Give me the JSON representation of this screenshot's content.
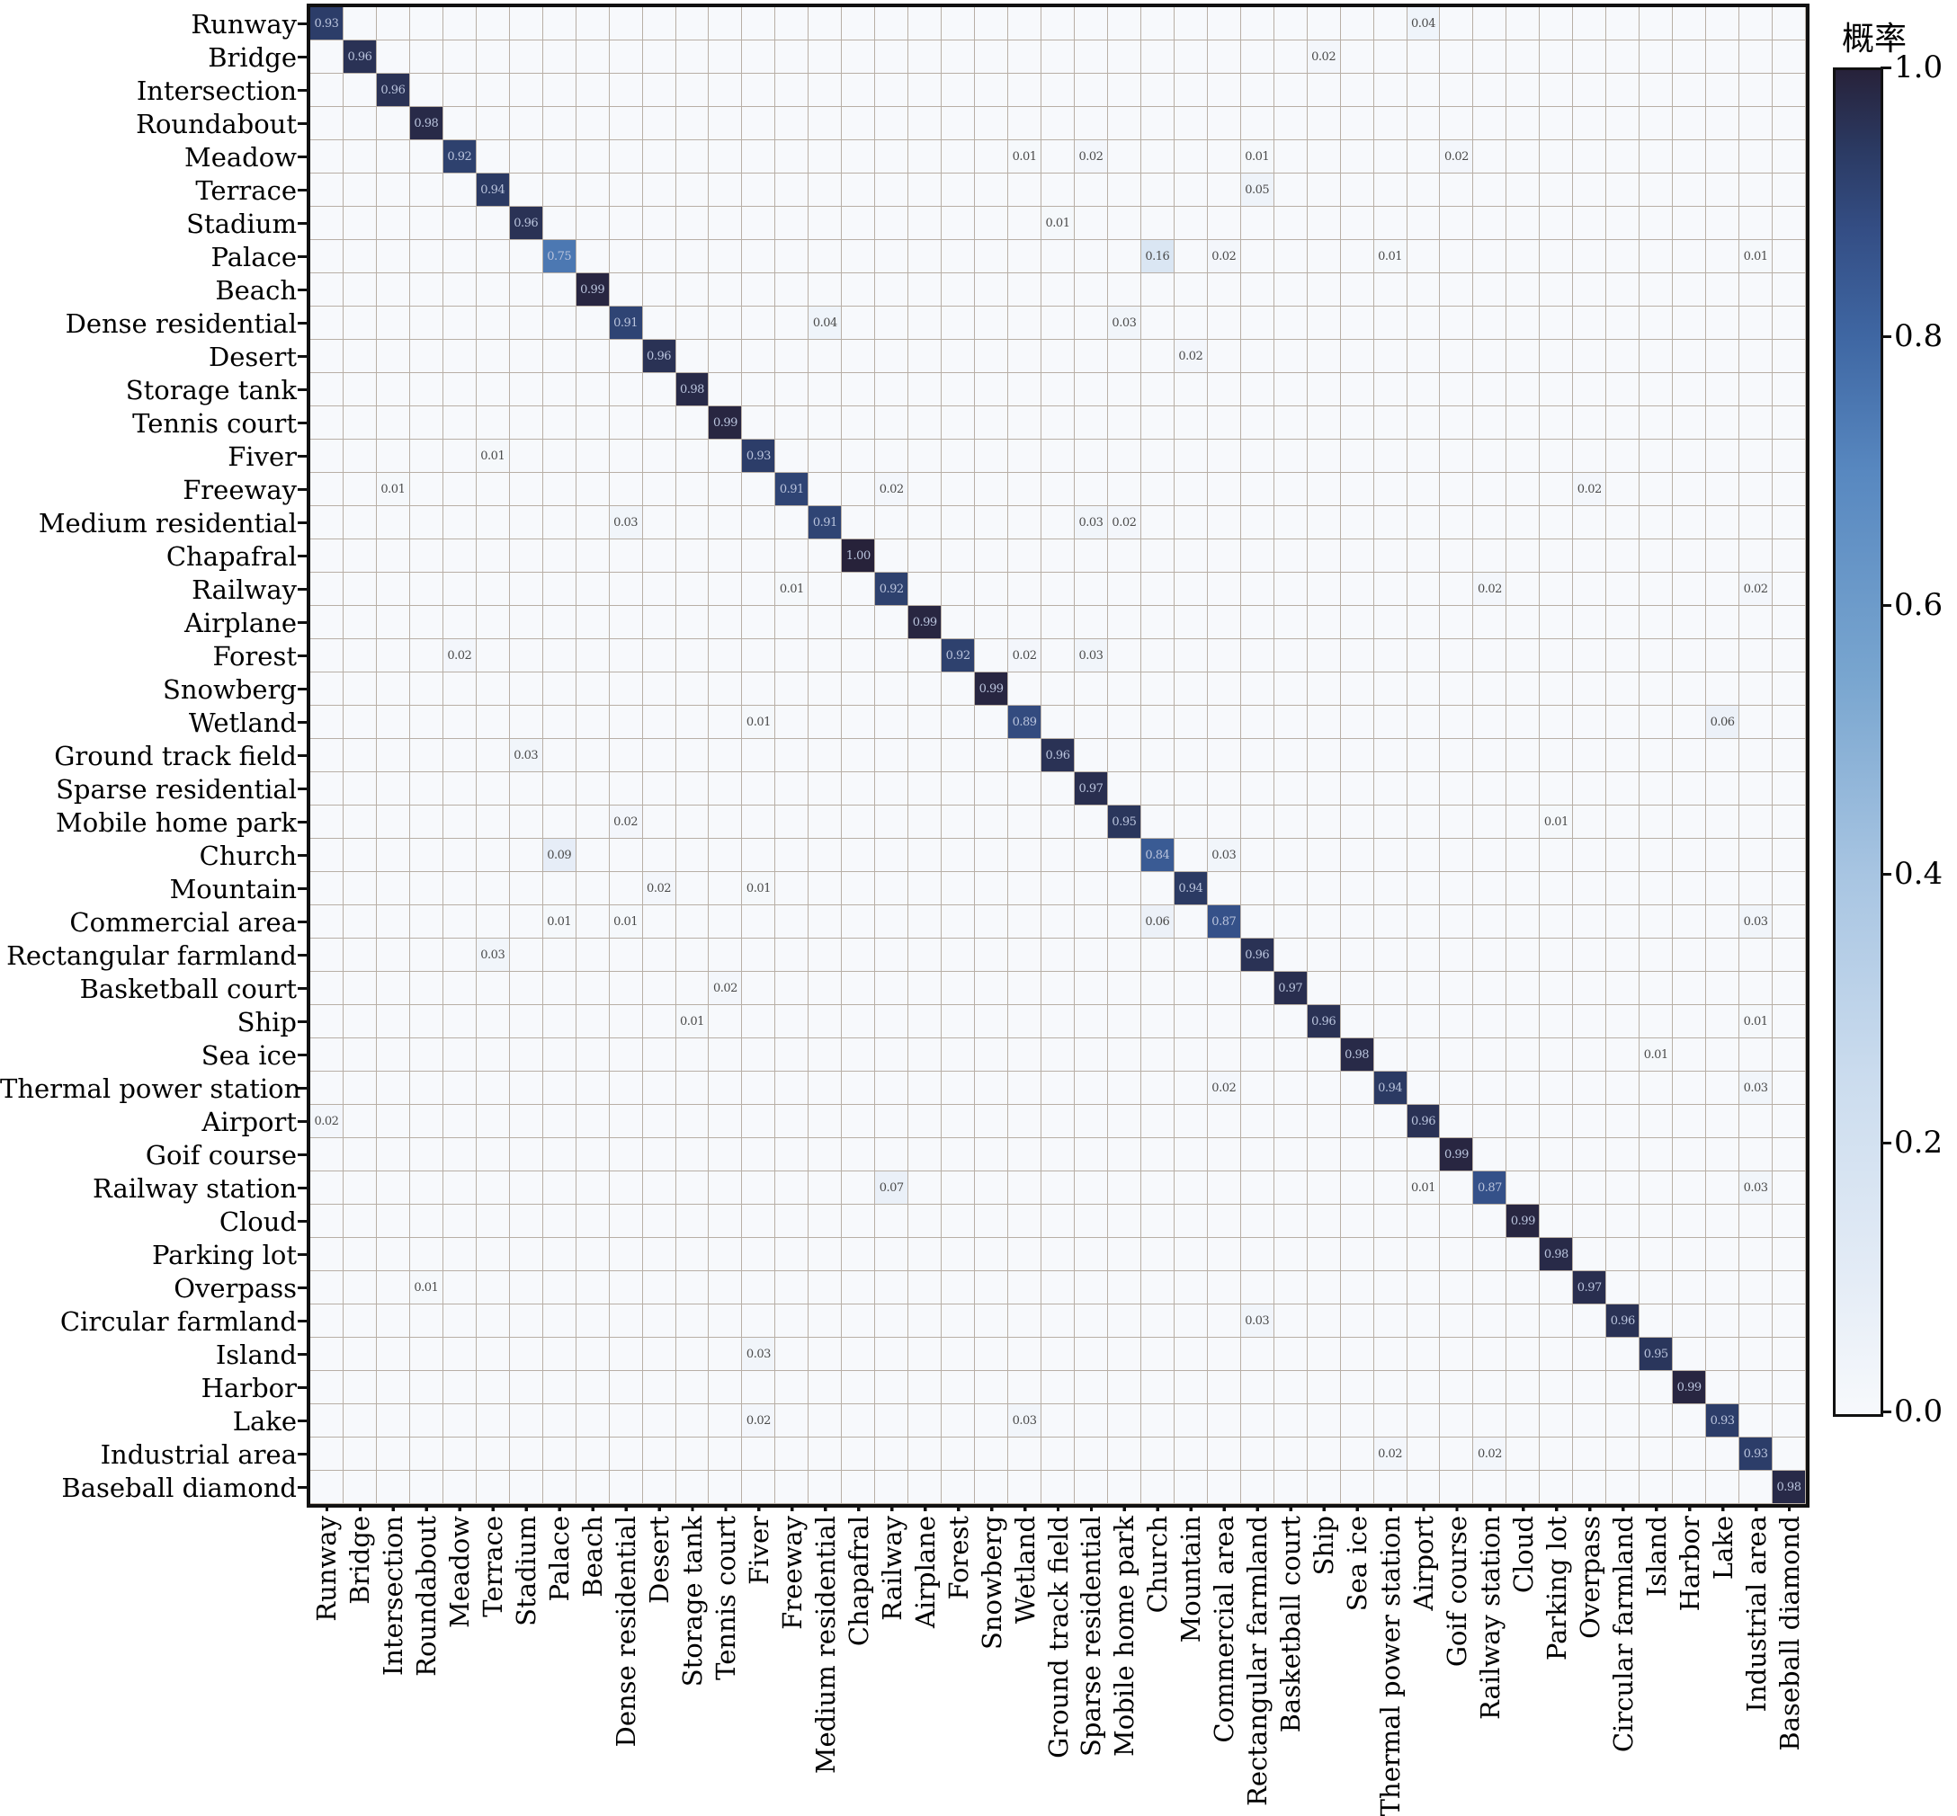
{
  "colorbar": {
    "label": "概率",
    "ticks": [
      "1.0",
      "0.8",
      "0.6",
      "0.4",
      "0.2",
      "0.0"
    ],
    "tick_values": [
      1.0,
      0.8,
      0.6,
      0.4,
      0.2,
      0.0
    ]
  },
  "colors": {
    "grid_line": "#b8afa6",
    "axis_spine": "#111111",
    "cell_base": "#f5f6fa",
    "text_dark": "#4a4a4a",
    "text_light": "#b9c3dc",
    "colormap_stops": [
      [
        0.0,
        "#f7f9fc"
      ],
      [
        0.1,
        "#e4ecf6"
      ],
      [
        0.25,
        "#cbdcee"
      ],
      [
        0.4,
        "#a8c5e2"
      ],
      [
        0.55,
        "#78a5cf"
      ],
      [
        0.7,
        "#5888c0"
      ],
      [
        0.8,
        "#3f67a3"
      ],
      [
        0.88,
        "#344e85"
      ],
      [
        0.94,
        "#2b3a63"
      ],
      [
        1.0,
        "#27223a"
      ]
    ]
  },
  "chart_data": {
    "type": "heatmap",
    "title": "",
    "xlabel": "",
    "ylabel": "",
    "legend_label": "概率",
    "value_range": [
      0.0,
      1.0
    ],
    "grid": true,
    "categories": [
      "Runway",
      "Bridge",
      "Intersection",
      "Roundabout",
      "Meadow",
      "Terrace",
      "Stadium",
      "Palace",
      "Beach",
      "Dense residential",
      "Desert",
      "Storage tank",
      "Tennis court",
      "Fiver",
      "Freeway",
      "Medium residential",
      "Chapafral",
      "Railway",
      "Airplane",
      "Forest",
      "Snowberg",
      "Wetland",
      "Ground track field",
      "Sparse residential",
      "Mobile home park",
      "Church",
      "Mountain",
      "Commercial area",
      "Rectangular farmland",
      "Basketball court",
      "Ship",
      "Sea ice",
      "Thermal power station",
      "Airport",
      "Goif course",
      "Railway station",
      "Cloud",
      "Parking lot",
      "Overpass",
      "Circular farmland",
      "Island",
      "Harbor",
      "Lake",
      "Industrial area",
      "Baseball diamond"
    ],
    "cells": [
      [
        0,
        0,
        0.93
      ],
      [
        1,
        1,
        0.96
      ],
      [
        2,
        2,
        0.96
      ],
      [
        3,
        3,
        0.98
      ],
      [
        4,
        4,
        0.92
      ],
      [
        5,
        5,
        0.94
      ],
      [
        6,
        6,
        0.96
      ],
      [
        7,
        7,
        0.75
      ],
      [
        8,
        8,
        0.99
      ],
      [
        9,
        9,
        0.91
      ],
      [
        10,
        10,
        0.96
      ],
      [
        11,
        11,
        0.98
      ],
      [
        12,
        12,
        0.99
      ],
      [
        13,
        13,
        0.93
      ],
      [
        14,
        14,
        0.91
      ],
      [
        15,
        15,
        0.91
      ],
      [
        16,
        16,
        1.0
      ],
      [
        17,
        17,
        0.92
      ],
      [
        18,
        18,
        0.99
      ],
      [
        19,
        19,
        0.92
      ],
      [
        20,
        20,
        0.99
      ],
      [
        21,
        21,
        0.89
      ],
      [
        22,
        22,
        0.96
      ],
      [
        23,
        23,
        0.97
      ],
      [
        24,
        24,
        0.95
      ],
      [
        25,
        25,
        0.84
      ],
      [
        26,
        26,
        0.94
      ],
      [
        27,
        27,
        0.87
      ],
      [
        28,
        28,
        0.96
      ],
      [
        29,
        29,
        0.97
      ],
      [
        30,
        30,
        0.96
      ],
      [
        31,
        31,
        0.98
      ],
      [
        32,
        32,
        0.94
      ],
      [
        33,
        33,
        0.96
      ],
      [
        34,
        34,
        0.99
      ],
      [
        35,
        35,
        0.87
      ],
      [
        36,
        36,
        0.99
      ],
      [
        37,
        37,
        0.98
      ],
      [
        38,
        38,
        0.97
      ],
      [
        39,
        39,
        0.96
      ],
      [
        40,
        40,
        0.95
      ],
      [
        41,
        41,
        0.99
      ],
      [
        42,
        42,
        0.93
      ],
      [
        43,
        43,
        0.93
      ],
      [
        44,
        44,
        0.98
      ],
      [
        0,
        33,
        0.04
      ],
      [
        1,
        30,
        0.02
      ],
      [
        4,
        21,
        0.01
      ],
      [
        4,
        23,
        0.02
      ],
      [
        4,
        28,
        0.01
      ],
      [
        4,
        34,
        0.02
      ],
      [
        5,
        28,
        0.05
      ],
      [
        6,
        22,
        0.01
      ],
      [
        7,
        25,
        0.16
      ],
      [
        7,
        27,
        0.02
      ],
      [
        7,
        32,
        0.01
      ],
      [
        7,
        43,
        0.01
      ],
      [
        9,
        15,
        0.04
      ],
      [
        9,
        24,
        0.03
      ],
      [
        10,
        26,
        0.02
      ],
      [
        13,
        5,
        0.01
      ],
      [
        14,
        2,
        0.01
      ],
      [
        14,
        17,
        0.02
      ],
      [
        14,
        38,
        0.02
      ],
      [
        15,
        9,
        0.03
      ],
      [
        15,
        23,
        0.03
      ],
      [
        15,
        24,
        0.02
      ],
      [
        17,
        14,
        0.01
      ],
      [
        17,
        35,
        0.02
      ],
      [
        17,
        43,
        0.02
      ],
      [
        19,
        4,
        0.02
      ],
      [
        19,
        21,
        0.02
      ],
      [
        19,
        23,
        0.03
      ],
      [
        21,
        13,
        0.01
      ],
      [
        21,
        42,
        0.06
      ],
      [
        22,
        6,
        0.03
      ],
      [
        24,
        9,
        0.02
      ],
      [
        24,
        37,
        0.01
      ],
      [
        25,
        7,
        0.09
      ],
      [
        25,
        27,
        0.03
      ],
      [
        26,
        10,
        0.02
      ],
      [
        26,
        13,
        0.01
      ],
      [
        27,
        7,
        0.01
      ],
      [
        27,
        9,
        0.01
      ],
      [
        27,
        25,
        0.06
      ],
      [
        27,
        43,
        0.03
      ],
      [
        28,
        5,
        0.03
      ],
      [
        29,
        12,
        0.02
      ],
      [
        30,
        11,
        0.01
      ],
      [
        30,
        43,
        0.01
      ],
      [
        31,
        40,
        0.01
      ],
      [
        32,
        27,
        0.02
      ],
      [
        32,
        43,
        0.03
      ],
      [
        33,
        0,
        0.02
      ],
      [
        35,
        17,
        0.07
      ],
      [
        35,
        33,
        0.01
      ],
      [
        35,
        43,
        0.03
      ],
      [
        38,
        3,
        0.01
      ],
      [
        39,
        28,
        0.03
      ],
      [
        40,
        13,
        0.03
      ],
      [
        42,
        13,
        0.02
      ],
      [
        42,
        21,
        0.03
      ],
      [
        43,
        32,
        0.02
      ],
      [
        43,
        35,
        0.02
      ]
    ]
  }
}
